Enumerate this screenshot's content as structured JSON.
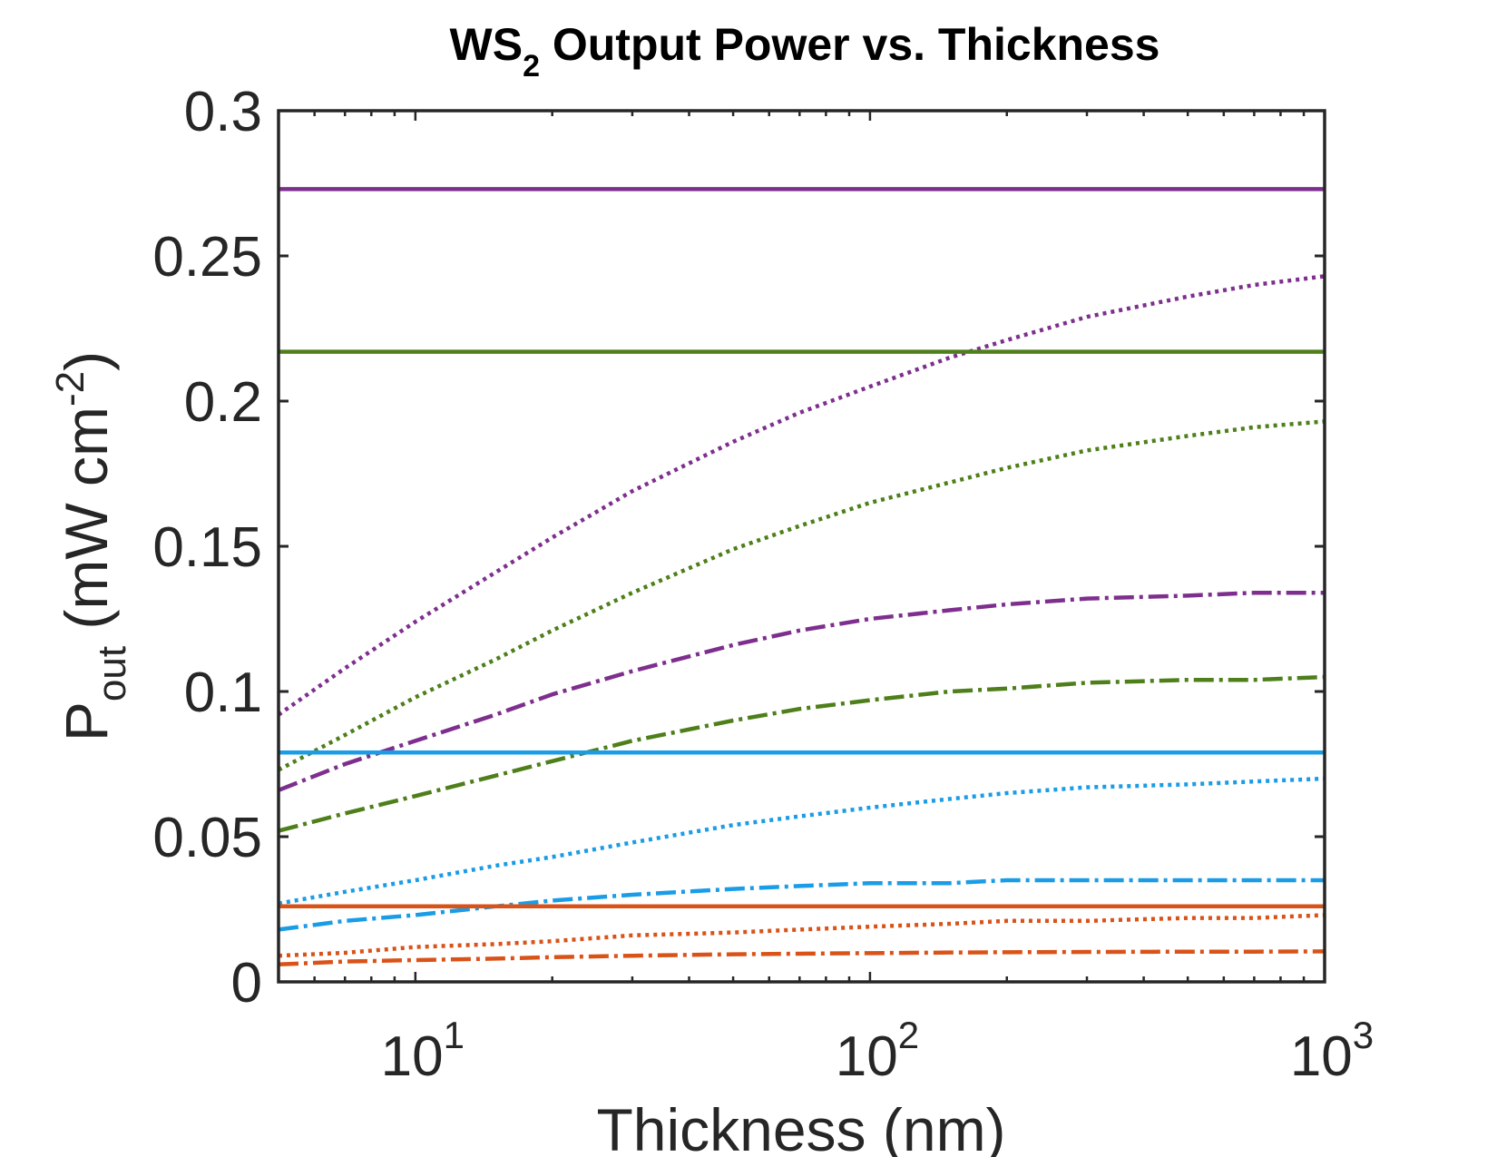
{
  "chart_data": {
    "type": "line",
    "title": {
      "main": "WS",
      "sub": "2",
      "rest": " Output Power vs. Thickness"
    },
    "xlabel": "Thickness (nm)",
    "ylabel": {
      "main": "P",
      "sub": "out",
      "unit_pre": " (mW cm",
      "sup": "-2",
      "unit_post": ")"
    },
    "xscale": "log",
    "xlim": [
      5,
      1000
    ],
    "ylim": [
      0,
      0.3
    ],
    "xticks": [
      {
        "value": 10,
        "base": "10",
        "exp": "1"
      },
      {
        "value": 100,
        "base": "10",
        "exp": "2"
      },
      {
        "value": 1000,
        "base": "10",
        "exp": "3"
      }
    ],
    "yticks": [
      {
        "value": 0,
        "label": "0"
      },
      {
        "value": 0.05,
        "label": "0.05"
      },
      {
        "value": 0.1,
        "label": "0.1"
      },
      {
        "value": 0.15,
        "label": "0.15"
      },
      {
        "value": 0.2,
        "label": "0.2"
      },
      {
        "value": 0.25,
        "label": "0.25"
      },
      {
        "value": 0.3,
        "label": "0.3"
      }
    ],
    "grid": false,
    "legend": "none",
    "x": [
      5,
      7,
      10,
      15,
      20,
      30,
      50,
      70,
      100,
      150,
      200,
      300,
      500,
      700,
      1000
    ],
    "series": [
      {
        "name": "purple-solid",
        "color": "#7E2F8E",
        "style": "solid",
        "values": [
          0.273,
          0.273,
          0.273,
          0.273,
          0.273,
          0.273,
          0.273,
          0.273,
          0.273,
          0.273,
          0.273,
          0.273,
          0.273,
          0.273,
          0.273
        ]
      },
      {
        "name": "purple-dotted",
        "color": "#7E2F8E",
        "style": "dotted",
        "values": [
          0.092,
          0.108,
          0.124,
          0.141,
          0.153,
          0.169,
          0.186,
          0.196,
          0.205,
          0.215,
          0.221,
          0.229,
          0.236,
          0.24,
          0.243
        ]
      },
      {
        "name": "purple-dashed",
        "color": "#7E2F8E",
        "style": "dashed",
        "values": [
          0.066,
          0.075,
          0.083,
          0.092,
          0.099,
          0.107,
          0.116,
          0.121,
          0.125,
          0.128,
          0.13,
          0.132,
          0.133,
          0.134,
          0.134
        ]
      },
      {
        "name": "green-solid",
        "color": "#4E7F1A",
        "style": "solid",
        "values": [
          0.217,
          0.217,
          0.217,
          0.217,
          0.217,
          0.217,
          0.217,
          0.217,
          0.217,
          0.217,
          0.217,
          0.217,
          0.217,
          0.217,
          0.217
        ]
      },
      {
        "name": "green-dotted",
        "color": "#4E7F1A",
        "style": "dotted",
        "values": [
          0.073,
          0.085,
          0.098,
          0.111,
          0.121,
          0.134,
          0.149,
          0.157,
          0.165,
          0.172,
          0.177,
          0.183,
          0.188,
          0.191,
          0.193
        ]
      },
      {
        "name": "green-dashed",
        "color": "#4E7F1A",
        "style": "dashed",
        "values": [
          0.052,
          0.058,
          0.064,
          0.071,
          0.076,
          0.083,
          0.09,
          0.094,
          0.097,
          0.1,
          0.101,
          0.103,
          0.104,
          0.104,
          0.105
        ]
      },
      {
        "name": "blue-solid",
        "color": "#1A9CE6",
        "style": "solid",
        "values": [
          0.079,
          0.079,
          0.079,
          0.079,
          0.079,
          0.079,
          0.079,
          0.079,
          0.079,
          0.079,
          0.079,
          0.079,
          0.079,
          0.079,
          0.079
        ]
      },
      {
        "name": "blue-dotted",
        "color": "#1A9CE6",
        "style": "dotted",
        "values": [
          0.027,
          0.031,
          0.035,
          0.04,
          0.043,
          0.048,
          0.054,
          0.057,
          0.06,
          0.063,
          0.065,
          0.067,
          0.068,
          0.069,
          0.07
        ]
      },
      {
        "name": "blue-dashed",
        "color": "#1A9CE6",
        "style": "dashed",
        "values": [
          0.018,
          0.021,
          0.023,
          0.026,
          0.028,
          0.03,
          0.032,
          0.033,
          0.034,
          0.034,
          0.035,
          0.035,
          0.035,
          0.035,
          0.035
        ]
      },
      {
        "name": "orange-solid",
        "color": "#D95319",
        "style": "solid",
        "values": [
          0.026,
          0.026,
          0.026,
          0.026,
          0.026,
          0.026,
          0.026,
          0.026,
          0.026,
          0.026,
          0.026,
          0.026,
          0.026,
          0.026,
          0.026
        ]
      },
      {
        "name": "orange-dotted",
        "color": "#D95319",
        "style": "dotted",
        "values": [
          0.009,
          0.01,
          0.012,
          0.013,
          0.014,
          0.016,
          0.017,
          0.018,
          0.019,
          0.02,
          0.021,
          0.021,
          0.022,
          0.022,
          0.023
        ]
      },
      {
        "name": "orange-dashed",
        "color": "#D95319",
        "style": "dashed",
        "values": [
          0.006,
          0.007,
          0.0075,
          0.008,
          0.0085,
          0.009,
          0.0095,
          0.0097,
          0.0099,
          0.0101,
          0.0102,
          0.0103,
          0.0104,
          0.0104,
          0.0105
        ]
      }
    ]
  }
}
